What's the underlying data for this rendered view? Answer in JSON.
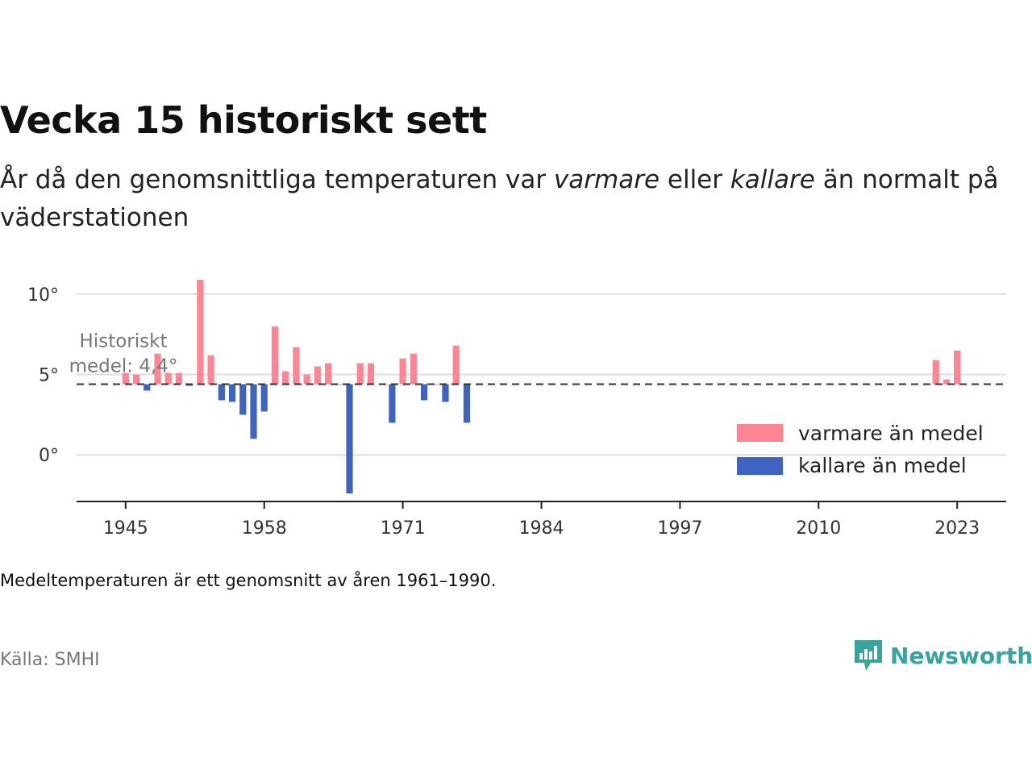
{
  "header": {
    "title": "Vecka 15 historiskt sett",
    "subtitle_pre": "År då den genomsnittliga temperaturen var ",
    "subtitle_warm": "varmare",
    "subtitle_mid": " eller ",
    "subtitle_cold": "kallare",
    "subtitle_post": " än normalt på väderstationen"
  },
  "footer": {
    "note": "Medeltemperaturen är ett genomsnitt av åren 1961–1990.",
    "source": "Källa: SMHI",
    "brand": "Newsworthy"
  },
  "colors": {
    "warm": "#ff8594",
    "cold": "#3f63c1",
    "brand": "#3aa39a"
  },
  "chart_data": {
    "type": "bar",
    "reference": {
      "value": 4.4,
      "label_line1": "Historiskt",
      "label_line2": "medel: 4,4°"
    },
    "ylim": [
      -2.9,
      11.5
    ],
    "yticks": [
      {
        "value": 0,
        "label": "0°"
      },
      {
        "value": 5,
        "label": "5°"
      },
      {
        "value": 10,
        "label": "10°"
      }
    ],
    "xlim": [
      1940.4,
      2027.6
    ],
    "xticks": [
      {
        "value": 1945,
        "label": "1945"
      },
      {
        "value": 1958,
        "label": "1958"
      },
      {
        "value": 1971,
        "label": "1971"
      },
      {
        "value": 1984,
        "label": "1984"
      },
      {
        "value": 1997,
        "label": "1997"
      },
      {
        "value": 2010,
        "label": "2010"
      },
      {
        "value": 2023,
        "label": "2023"
      }
    ],
    "legend": {
      "position": "right",
      "warm_label": "varmare än medel",
      "cold_label": "kallare än medel"
    },
    "years": [
      1945,
      1946,
      1947,
      1948,
      1949,
      1950,
      1951,
      1952,
      1953,
      1954,
      1955,
      1956,
      1957,
      1958,
      1959,
      1960,
      1961,
      1962,
      1963,
      1964,
      1965,
      1966,
      1967,
      1968,
      1969,
      1970,
      1971,
      1972,
      1973,
      1974,
      1975,
      1976,
      1977,
      2021,
      2022,
      2023
    ],
    "values": [
      5.1,
      5.0,
      4.0,
      6.3,
      5.1,
      5.1,
      4.3,
      10.9,
      6.2,
      3.4,
      3.3,
      2.5,
      1.0,
      2.7,
      8.0,
      5.2,
      6.7,
      5.0,
      5.5,
      5.7,
      4.4,
      -2.4,
      5.7,
      5.7,
      4.4,
      2.0,
      6.0,
      6.3,
      3.4,
      4.4,
      3.3,
      6.8,
      2.0,
      5.9,
      4.7,
      6.5
    ]
  }
}
